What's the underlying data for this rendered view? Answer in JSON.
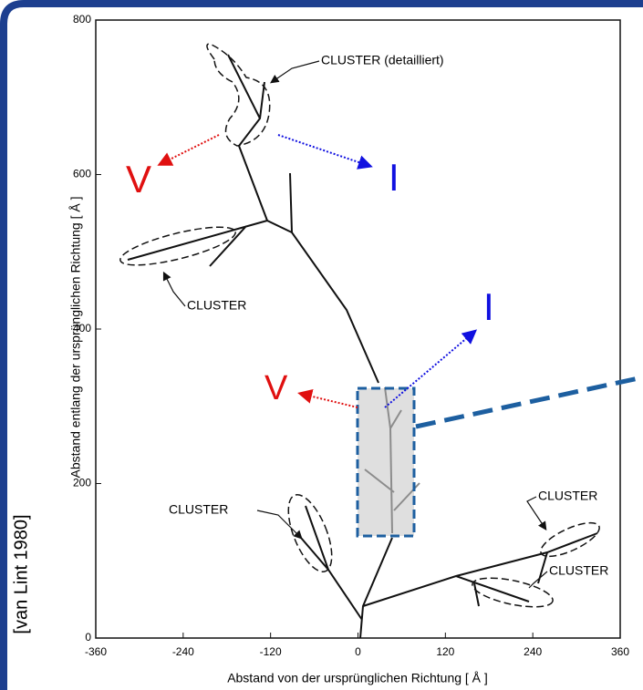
{
  "axes": {
    "x": {
      "label": "Abstand von der  ursprünglichen Richtung   [ Å ]",
      "ticks": [
        -360,
        -240,
        -120,
        0,
        120,
        240,
        360
      ]
    },
    "y": {
      "label": "Abstand entlang der  ursprünglichen  Richtung [ Å ]",
      "ticks": [
        0,
        200,
        400,
        600,
        800
      ]
    }
  },
  "annotations": {
    "cluster_detailed": "CLUSTER (detailliert)",
    "clusters": [
      "CLUSTER",
      "CLUSTER",
      "CLUSTER",
      "CLUSTER"
    ],
    "vacancies": [
      "V",
      "V"
    ],
    "interstitials": [
      "I",
      "I"
    ]
  },
  "citation": "[van Lint 1980]"
}
